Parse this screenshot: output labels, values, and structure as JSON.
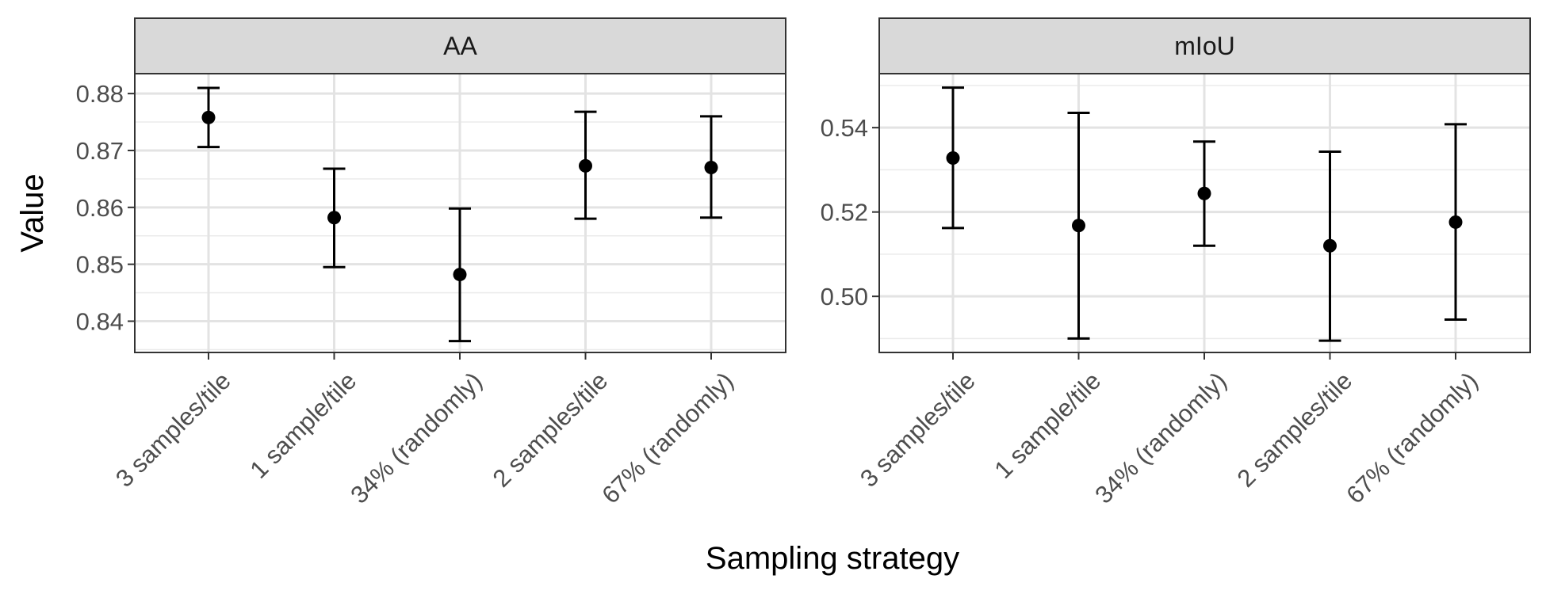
{
  "chart_data": {
    "type": "errorbar",
    "xlabel": "Sampling strategy",
    "ylabel": "Value",
    "categories": [
      "3 samples/tile",
      "1 sample/tile",
      "34% (randomly)",
      "2 samples/tile",
      "67% (randomly)"
    ],
    "grid": true,
    "panels": [
      {
        "strip": "AA",
        "ylim": [
          0.8345,
          0.8835
        ],
        "yticks": [
          0.84,
          0.85,
          0.86,
          0.87,
          0.88
        ],
        "ytick_labels": [
          "0.84",
          "0.85",
          "0.86",
          "0.87",
          "0.88"
        ],
        "points": [
          {
            "mean": 0.8758,
            "lower": 0.8706,
            "upper": 0.881
          },
          {
            "mean": 0.8582,
            "lower": 0.8495,
            "upper": 0.8668
          },
          {
            "mean": 0.8482,
            "lower": 0.8365,
            "upper": 0.8598
          },
          {
            "mean": 0.8673,
            "lower": 0.858,
            "upper": 0.8768
          },
          {
            "mean": 0.867,
            "lower": 0.8582,
            "upper": 0.876
          }
        ]
      },
      {
        "strip": "mIoU",
        "ylim": [
          0.4867,
          0.5528
        ],
        "yticks": [
          0.5,
          0.52,
          0.54
        ],
        "ytick_labels": [
          "0.50",
          "0.52",
          "0.54"
        ],
        "points": [
          {
            "mean": 0.5328,
            "lower": 0.5162,
            "upper": 0.5495
          },
          {
            "mean": 0.5168,
            "lower": 0.49,
            "upper": 0.5435
          },
          {
            "mean": 0.5244,
            "lower": 0.512,
            "upper": 0.5367
          },
          {
            "mean": 0.512,
            "lower": 0.4895,
            "upper": 0.5343
          },
          {
            "mean": 0.5176,
            "lower": 0.4945,
            "upper": 0.5408
          }
        ]
      }
    ]
  }
}
